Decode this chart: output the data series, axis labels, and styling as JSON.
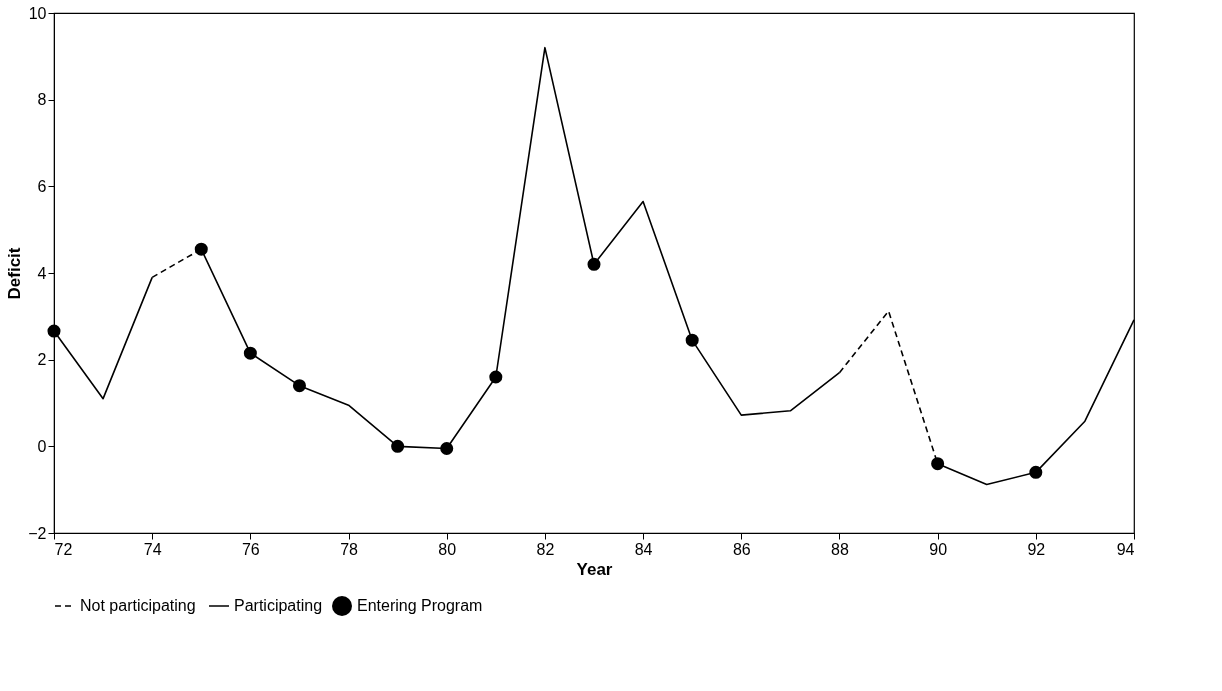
{
  "chart_data": {
    "type": "line",
    "xlabel": "Year",
    "ylabel": "Deficit",
    "x": [
      72,
      73,
      74,
      75,
      76,
      77,
      78,
      79,
      80,
      81,
      82,
      83,
      84,
      85,
      86,
      87,
      88,
      89,
      90,
      91,
      92
    ],
    "xlim": [
      72,
      94
    ],
    "xticks": [
      72,
      74,
      76,
      78,
      80,
      82,
      84,
      86,
      88,
      90,
      92,
      94
    ],
    "ylim": [
      -2,
      10
    ],
    "yticks": [
      -2,
      0,
      2,
      4,
      6,
      8,
      10
    ],
    "grid": false,
    "legend": "bottom",
    "series": [
      {
        "name": "Not participating",
        "line_style": "dashed",
        "color": "#000000",
        "values": [
          null,
          null,
          3.9,
          4.55,
          null,
          null,
          null,
          null,
          null,
          null,
          null,
          null,
          null,
          null,
          null,
          null,
          1.7,
          3.12,
          -0.4,
          null,
          null
        ]
      },
      {
        "name": "Entering Program",
        "type": "scatter",
        "marker": "circle",
        "color": "#000000",
        "values": [
          2.66,
          null,
          null,
          4.55,
          2.15,
          1.4,
          null,
          0.0,
          -0.05,
          1.6,
          null,
          4.2,
          null,
          2.45,
          null,
          null,
          null,
          null,
          -0.4,
          null,
          -0.6
        ]
      },
      {
        "name": "Participating",
        "line_style": "solid",
        "color": "#000000",
        "x": [
          72,
          73,
          74,
          74.5,
          75,
          76,
          77,
          78,
          79,
          80,
          81,
          82,
          83,
          84,
          85,
          86,
          87,
          88,
          89,
          90,
          91,
          92,
          93,
          94
        ],
        "values": [
          2.66,
          1.1,
          3.9,
          null,
          4.55,
          2.15,
          1.4,
          0.95,
          0.0,
          -0.05,
          1.6,
          9.2,
          4.2,
          5.65,
          2.45,
          0.72,
          0.82,
          1.7,
          null,
          -0.4,
          -0.88,
          -0.6,
          0.58,
          2.92
        ]
      }
    ]
  }
}
